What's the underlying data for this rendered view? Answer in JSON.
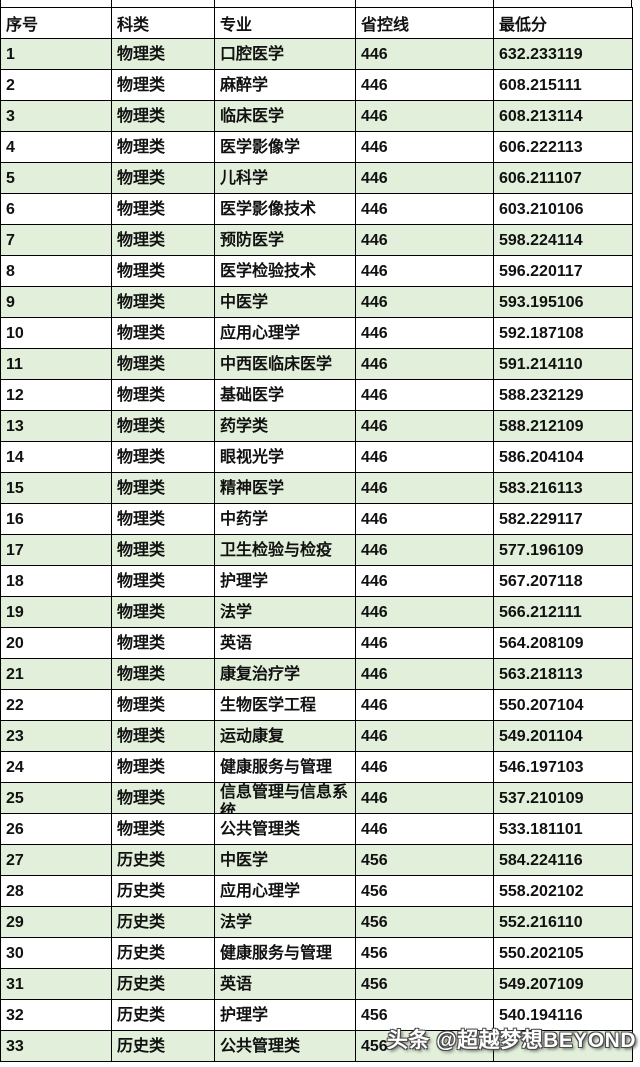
{
  "table": {
    "columns": [
      "序号",
      "科类",
      "专业",
      "省控线",
      "最低分"
    ],
    "rows": [
      {
        "no": "1",
        "category": "物理类",
        "major": "口腔医学",
        "line": "446",
        "min": "632.233119"
      },
      {
        "no": "2",
        "category": "物理类",
        "major": "麻醉学",
        "line": "446",
        "min": "608.215111"
      },
      {
        "no": "3",
        "category": "物理类",
        "major": "临床医学",
        "line": "446",
        "min": "608.213114"
      },
      {
        "no": "4",
        "category": "物理类",
        "major": "医学影像学",
        "line": "446",
        "min": "606.222113"
      },
      {
        "no": "5",
        "category": "物理类",
        "major": "儿科学",
        "line": "446",
        "min": "606.211107"
      },
      {
        "no": "6",
        "category": "物理类",
        "major": "医学影像技术",
        "line": "446",
        "min": "603.210106"
      },
      {
        "no": "7",
        "category": "物理类",
        "major": "预防医学",
        "line": "446",
        "min": "598.224114"
      },
      {
        "no": "8",
        "category": "物理类",
        "major": "医学检验技术",
        "line": "446",
        "min": "596.220117"
      },
      {
        "no": "9",
        "category": "物理类",
        "major": "中医学",
        "line": "446",
        "min": "593.195106"
      },
      {
        "no": "10",
        "category": "物理类",
        "major": "应用心理学",
        "line": "446",
        "min": "592.187108"
      },
      {
        "no": "11",
        "category": "物理类",
        "major": "中西医临床医学",
        "line": "446",
        "min": "591.214110"
      },
      {
        "no": "12",
        "category": "物理类",
        "major": "基础医学",
        "line": "446",
        "min": "588.232129"
      },
      {
        "no": "13",
        "category": "物理类",
        "major": "药学类",
        "line": "446",
        "min": "588.212109"
      },
      {
        "no": "14",
        "category": "物理类",
        "major": "眼视光学",
        "line": "446",
        "min": "586.204104"
      },
      {
        "no": "15",
        "category": "物理类",
        "major": "精神医学",
        "line": "446",
        "min": "583.216113"
      },
      {
        "no": "16",
        "category": "物理类",
        "major": "中药学",
        "line": "446",
        "min": "582.229117"
      },
      {
        "no": "17",
        "category": "物理类",
        "major": "卫生检验与检疫",
        "line": "446",
        "min": "577.196109"
      },
      {
        "no": "18",
        "category": "物理类",
        "major": "护理学",
        "line": "446",
        "min": "567.207118"
      },
      {
        "no": "19",
        "category": "物理类",
        "major": "法学",
        "line": "446",
        "min": "566.212111"
      },
      {
        "no": "20",
        "category": "物理类",
        "major": "英语",
        "line": "446",
        "min": "564.208109"
      },
      {
        "no": "21",
        "category": "物理类",
        "major": "康复治疗学",
        "line": "446",
        "min": "563.218113"
      },
      {
        "no": "22",
        "category": "物理类",
        "major": "生物医学工程",
        "line": "446",
        "min": "550.207104"
      },
      {
        "no": "23",
        "category": "物理类",
        "major": "运动康复",
        "line": "446",
        "min": "549.201104"
      },
      {
        "no": "24",
        "category": "物理类",
        "major": "健康服务与管理",
        "line": "446",
        "min": "546.197103"
      },
      {
        "no": "25",
        "category": "物理类",
        "major": "信息管理与信息系统",
        "line": "446",
        "min": "537.210109"
      },
      {
        "no": "26",
        "category": "物理类",
        "major": "公共管理类",
        "line": "446",
        "min": "533.181101"
      },
      {
        "no": "27",
        "category": "历史类",
        "major": "中医学",
        "line": "456",
        "min": "584.224116"
      },
      {
        "no": "28",
        "category": "历史类",
        "major": "应用心理学",
        "line": "456",
        "min": "558.202102"
      },
      {
        "no": "29",
        "category": "历史类",
        "major": "法学",
        "line": "456",
        "min": "552.216110"
      },
      {
        "no": "30",
        "category": "历史类",
        "major": "健康服务与管理",
        "line": "456",
        "min": "550.202105"
      },
      {
        "no": "31",
        "category": "历史类",
        "major": "英语",
        "line": "456",
        "min": "549.207109"
      },
      {
        "no": "32",
        "category": "历史类",
        "major": "护理学",
        "line": "456",
        "min": "540.194116"
      },
      {
        "no": "33",
        "category": "历史类",
        "major": "公共管理类",
        "line": "456",
        "min": ""
      }
    ]
  },
  "watermark": {
    "text": "头条 @超越梦想BEYOND"
  },
  "colors": {
    "row_green": "#e2efda",
    "grid_border": "#000000",
    "watermark_fill": "#ffffff",
    "watermark_outline": "#4a4a4a",
    "text_color": "#111111"
  }
}
